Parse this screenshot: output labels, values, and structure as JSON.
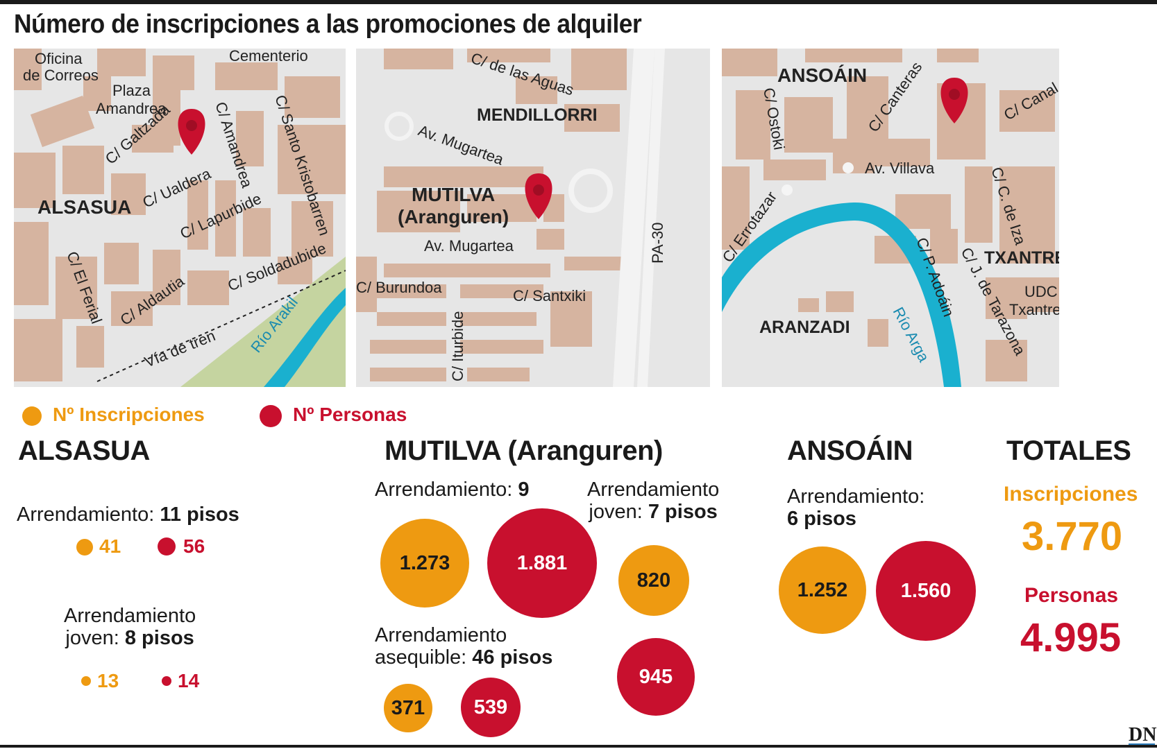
{
  "title": "Número de inscripciones a las promociones de alquiler",
  "colors": {
    "inscripciones": "#ee9a11",
    "personas": "#c8102e",
    "map_bg": "#e6e6e6",
    "building": "#d6b4a0",
    "river": "#1ab0cf",
    "park": "#c5d4a0"
  },
  "maps": {
    "alsasua": {
      "labels": {
        "oficina1": "Oficina",
        "oficina2": "de Correos",
        "cementerio": "Cementerio",
        "plaza1": "Plaza",
        "plaza2": "Amandrea",
        "galtzada": "C/ Galtzada",
        "amandrea": "C/ Amandrea",
        "santo": "C/ Santo Kristobarren",
        "ualdera": "C/ Ualdera",
        "town": "ALSASUA",
        "lapurbide": "C/ Lapurbide",
        "elferial": "C/ El Ferial",
        "soldadubide": "C/ Soldadubide",
        "aldautia": "C/ Aldautia",
        "via": "Vía de tren",
        "rio": "Río Arakil"
      }
    },
    "mutilva": {
      "labels": {
        "aguas": "C/ de las Aguas",
        "mendillorri": "MENDILLORRI",
        "mugartea1": "Av. Mugartea",
        "town1": "MUTILVA",
        "town2": "(Aranguren)",
        "mugartea2": "Av. Mugartea",
        "pa30": "PA-30",
        "burundoa": "C/ Burundoa",
        "santxiki": "C/ Santxiki",
        "iturbide": "C/ Iturbide"
      }
    },
    "ansoain": {
      "labels": {
        "town": "ANSOÁIN",
        "ostoki": "C/ Ostoki",
        "canteras": "C/ Canteras",
        "canal": "C/ Canal",
        "villava": "Av. Villava",
        "cdeiza": "C/ C. de Iza",
        "errotazar": "C/ Errotazar",
        "txantrea": "TXANTREA",
        "adoain": "C/ P. Adoáin",
        "tarazona": "C/ J. de Tarazona",
        "udc1": "UDC",
        "udc2": "Txantrea",
        "aranzadi": "ARANZADI",
        "rio": "Río Arga"
      }
    }
  },
  "legend": {
    "inscripciones": "Nº Inscripciones",
    "personas": "Nº Personas"
  },
  "alsasua": {
    "title": "ALSASUA",
    "arr_label": "Arrendamiento:",
    "arr_bold": "11 pisos",
    "arr_insc": "41",
    "arr_pers": "56",
    "joven_label1": "Arrendamiento",
    "joven_label2": "joven:",
    "joven_bold": "8 pisos",
    "joven_insc": "13",
    "joven_pers": "14"
  },
  "mutilva": {
    "title": "MUTILVA (Aranguren)",
    "arr_label": "Arrendamiento:",
    "arr_bold": "9",
    "arr_insc": "1.273",
    "arr_pers": "1.881",
    "joven_label1": "Arrendamiento",
    "joven_label2": "joven:",
    "joven_bold": "7 pisos",
    "joven_insc": "820",
    "joven_pers": "945",
    "asequible_label1": "Arrendamiento",
    "asequible_label2": "asequible:",
    "asequible_bold": "46 pisos",
    "asequible_insc": "371",
    "asequible_pers": "539"
  },
  "ansoain": {
    "title": "ANSOÁIN",
    "arr_label1": "Arrendamiento:",
    "arr_bold": "6 pisos",
    "arr_insc": "1.252",
    "arr_pers": "1.560"
  },
  "totales": {
    "title": "TOTALES",
    "insc_label": "Inscripciones",
    "insc_value": "3.770",
    "pers_label": "Personas",
    "pers_value": "4.995"
  },
  "logo": "DN"
}
